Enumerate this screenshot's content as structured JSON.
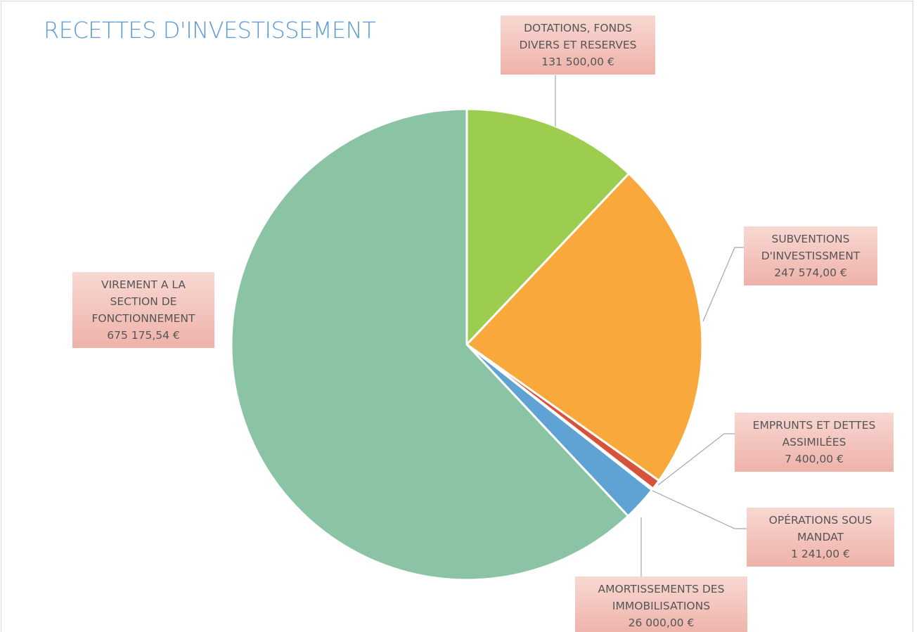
{
  "chart_data": {
    "type": "pie",
    "title": "RECETTES D'INVESTISSEMENT",
    "categories": [
      "DOTATIONS, FONDS DIVERS ET RESERVES",
      "SUBVENTIONS D'INVESTISSMENT",
      "EMPRUNTS ET DETTES ASSIMILÉES",
      "OPÉRATIONS SOUS MANDAT",
      "AMORTISSEMENTS DES IMMOBILISATIONS",
      "VIREMENT A LA SECTION DE FONCTIONNEMENT"
    ],
    "values": [
      131500,
      247574,
      7400,
      1241,
      26000,
      675175.54
    ],
    "value_labels": [
      "131 500,00 €",
      "247 574,00 €",
      "7 400,00 €",
      "1 241,00 €",
      "26 000,00 €",
      "675 175,54 €"
    ],
    "colors": [
      "#9ccd4f",
      "#f9a93b",
      "#d6523b",
      "#7f7f7f",
      "#5fa2d4",
      "#8bc3a5"
    ]
  }
}
